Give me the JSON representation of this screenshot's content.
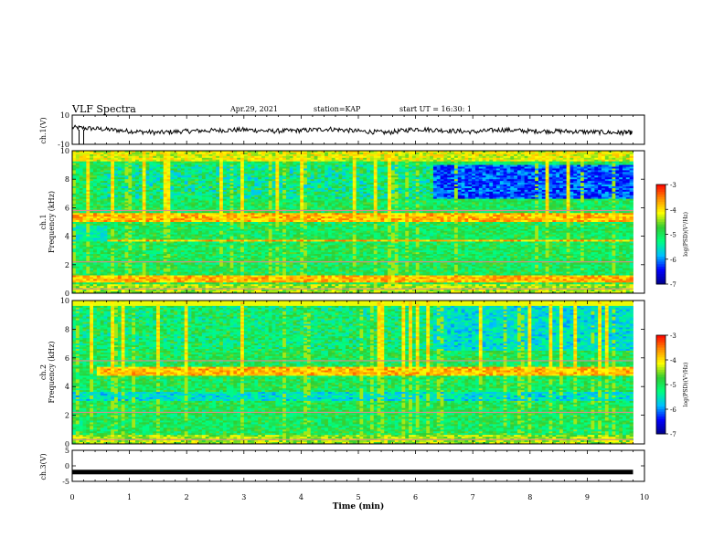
{
  "header": {
    "title": "VLF Spectra",
    "date": "Apr.29, 2021",
    "station": "station=KAP",
    "start": "start UT =  16:30: 1"
  },
  "chart_data": [
    {
      "type": "line",
      "name": "ch1-waveform",
      "ylabel": "ch.1(V)",
      "ylim": [
        -10,
        10
      ],
      "y_ticks": [
        "10",
        "-10"
      ],
      "xlim": [
        0,
        10
      ],
      "note_values": "continuous noisy trace around -1 V, roughly within -4..+3 V, ending near 9.8 min",
      "x": [
        0,
        0.5,
        1,
        1.5,
        2,
        2.5,
        3,
        3.5,
        4,
        4.5,
        5,
        5.5,
        6,
        6.5,
        7,
        7.5,
        8,
        8.5,
        9,
        9.5,
        9.8
      ],
      "y": [
        1.5,
        0.5,
        -1,
        -2,
        -1,
        -0.5,
        0,
        -1,
        -0.5,
        0.5,
        -1,
        -2,
        0.5,
        -0.5,
        -1.5,
        0,
        -1,
        -1,
        -1.5,
        -2,
        -2
      ]
    },
    {
      "type": "heatmap",
      "name": "ch1-spectrogram",
      "ylabel": "ch.1\nFrequency (kHz)",
      "ylim": [
        0,
        10
      ],
      "y_ticks": [
        "0",
        "2",
        "4",
        "6",
        "8",
        "10"
      ],
      "xlim": [
        0,
        9.8
      ],
      "colorbar": {
        "label": "log(PSD)(V²/Hz)",
        "range": [
          -7,
          -3
        ],
        "ticks": [
          "-3",
          "-4",
          "-5",
          "-6",
          "-7"
        ]
      },
      "description_bands": [
        {
          "freq": [
            6.6,
            9.0
          ],
          "level": -6.2,
          "after_min": 6.3
        },
        {
          "freq": [
            5.0,
            5.6
          ],
          "level": -3.8
        },
        {
          "freq": [
            3.6,
            3.8
          ],
          "level": -3.8
        },
        {
          "freq": [
            0.8,
            1.2
          ],
          "level": -3.8
        }
      ]
    },
    {
      "type": "heatmap",
      "name": "ch2-spectrogram",
      "ylabel": "ch.2\nFrequency (kHz)",
      "ylim": [
        0,
        10
      ],
      "y_ticks": [
        "0",
        "2",
        "4",
        "6",
        "8",
        "10"
      ],
      "xlim": [
        0,
        9.8
      ],
      "colorbar": {
        "label": "log(PSD)(V²/Hz)",
        "range": [
          -7,
          -3
        ],
        "ticks": [
          "-3",
          "-4",
          "-5",
          "-6",
          "-7"
        ]
      },
      "description_bands": [
        {
          "freq": [
            4.8,
            5.4
          ],
          "level": -3.8,
          "after_min": 0.45
        },
        {
          "freq": [
            6.5,
            9.6
          ],
          "level": -5.6,
          "after_min": 6.3
        }
      ]
    },
    {
      "type": "line",
      "name": "ch3-waveform",
      "ylabel": "ch.3(V)",
      "ylim": [
        -5,
        5
      ],
      "y_ticks": [
        "5",
        "0",
        "-5"
      ],
      "xlim": [
        0,
        10
      ],
      "x": [
        0,
        9.8
      ],
      "y": [
        -2,
        -2
      ]
    }
  ],
  "x_axis": {
    "label": "Time (min)",
    "ticks": [
      "0",
      "1",
      "2",
      "3",
      "4",
      "5",
      "6",
      "7",
      "8",
      "9",
      "10"
    ]
  },
  "colors": {
    "colormap": [
      "#00008b",
      "#0000ff",
      "#00bfff",
      "#00ff7f",
      "#32cd32",
      "#ffff00",
      "#ff8c00",
      "#ff0000",
      "#ffffff"
    ]
  }
}
